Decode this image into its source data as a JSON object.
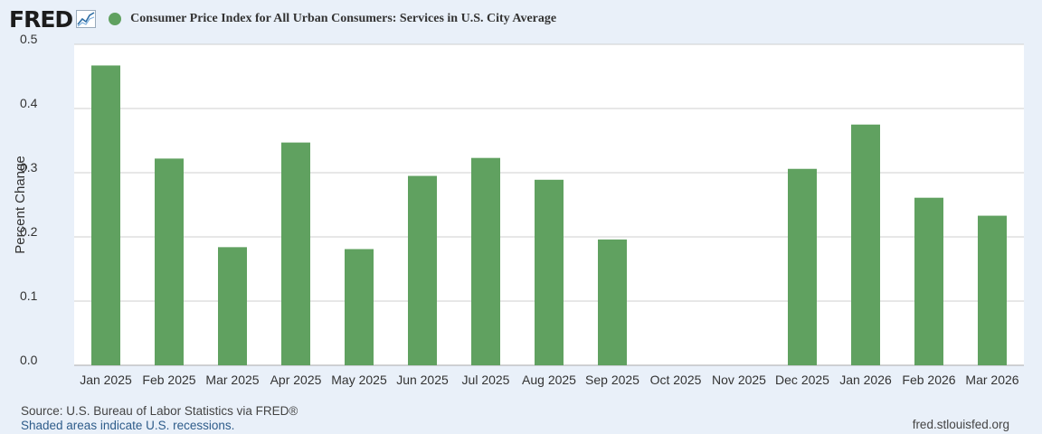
{
  "brand": {
    "logo": "FRED",
    "logo_icon": "trend-line-icon"
  },
  "colors": {
    "series": "#60a160",
    "background": "#e9f0f9",
    "plot_bg": "#ffffff",
    "grid": "#cfcfcf"
  },
  "footer": {
    "source": "Source: U.S. Bureau of Labor Statistics via FRED®",
    "shaded_note": "Shaded areas indicate U.S. recessions.",
    "url": "fred.stlouisfed.org"
  },
  "chart_data": {
    "type": "bar",
    "title": "Consumer Price Index for All Urban Consumers: Services in U.S. City Average",
    "ylabel": "Percent Change",
    "xlabel": "",
    "ylim": [
      0,
      0.5
    ],
    "yticks": [
      "0.0",
      "0.1",
      "0.2",
      "0.3",
      "0.4",
      "0.5"
    ],
    "grid": true,
    "categories": [
      "Jan 2025",
      "Feb 2025",
      "Mar 2025",
      "Apr 2025",
      "May 2025",
      "Jun 2025",
      "Jul 2025",
      "Aug 2025",
      "Sep 2025",
      "Oct 2025",
      "Nov 2025",
      "Dec 2025",
      "Jan 2026",
      "Feb 2026",
      "Mar 2026"
    ],
    "values": [
      0.467,
      0.322,
      0.184,
      0.347,
      0.181,
      0.295,
      0.323,
      0.289,
      0.196,
      null,
      null,
      0.306,
      0.375,
      0.261,
      0.233
    ]
  }
}
